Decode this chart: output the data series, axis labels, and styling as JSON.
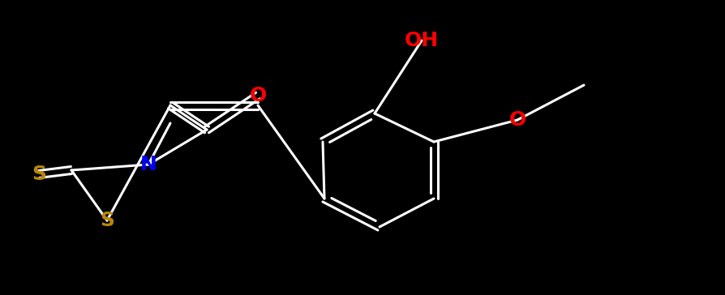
{
  "background_color": "#000000",
  "bond_color": "#ffffff",
  "atom_colors": {
    "N": "#0000ff",
    "O": "#ff0000",
    "S": "#b8860b",
    "C": "#ffffff"
  },
  "figsize": [
    8.94,
    3.64
  ],
  "dpi": 100
}
